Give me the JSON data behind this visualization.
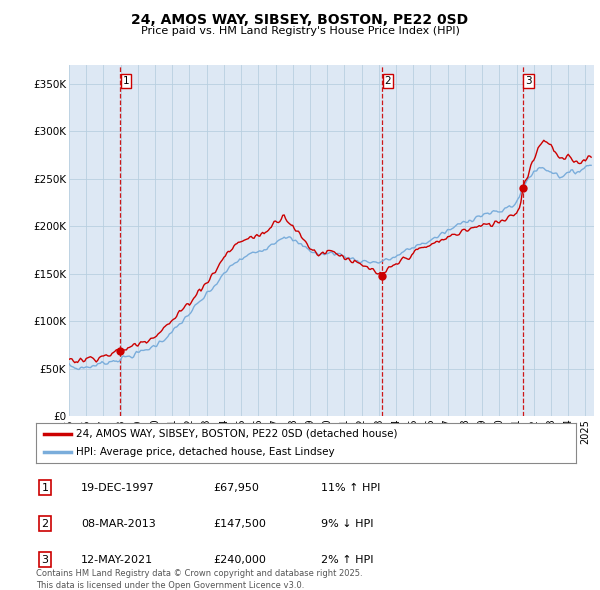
{
  "title": "24, AMOS WAY, SIBSEY, BOSTON, PE22 0SD",
  "subtitle": "Price paid vs. HM Land Registry's House Price Index (HPI)",
  "ylim": [
    0,
    370000
  ],
  "yticks": [
    0,
    50000,
    100000,
    150000,
    200000,
    250000,
    300000,
    350000
  ],
  "ytick_labels": [
    "£0",
    "£50K",
    "£100K",
    "£150K",
    "£200K",
    "£250K",
    "£300K",
    "£350K"
  ],
  "sale_dates": [
    "1997-12-19",
    "2013-03-08",
    "2021-05-12"
  ],
  "sale_prices": [
    67950,
    147500,
    240000
  ],
  "sale_labels": [
    "1",
    "2",
    "3"
  ],
  "legend_line1": "24, AMOS WAY, SIBSEY, BOSTON, PE22 0SD (detached house)",
  "legend_line2": "HPI: Average price, detached house, East Lindsey",
  "table_rows": [
    [
      "1",
      "19-DEC-1997",
      "£67,950",
      "11% ↑ HPI"
    ],
    [
      "2",
      "08-MAR-2013",
      "£147,500",
      "9% ↓ HPI"
    ],
    [
      "3",
      "12-MAY-2021",
      "£240,000",
      "2% ↑ HPI"
    ]
  ],
  "footer": "Contains HM Land Registry data © Crown copyright and database right 2025.\nThis data is licensed under the Open Government Licence v3.0.",
  "line_color_sold": "#cc0000",
  "line_color_hpi": "#7aaddb",
  "vline_color": "#cc0000",
  "bg_color": "#ffffff",
  "plot_bg": "#dde8f4",
  "grid_color": "#b8cfe0"
}
